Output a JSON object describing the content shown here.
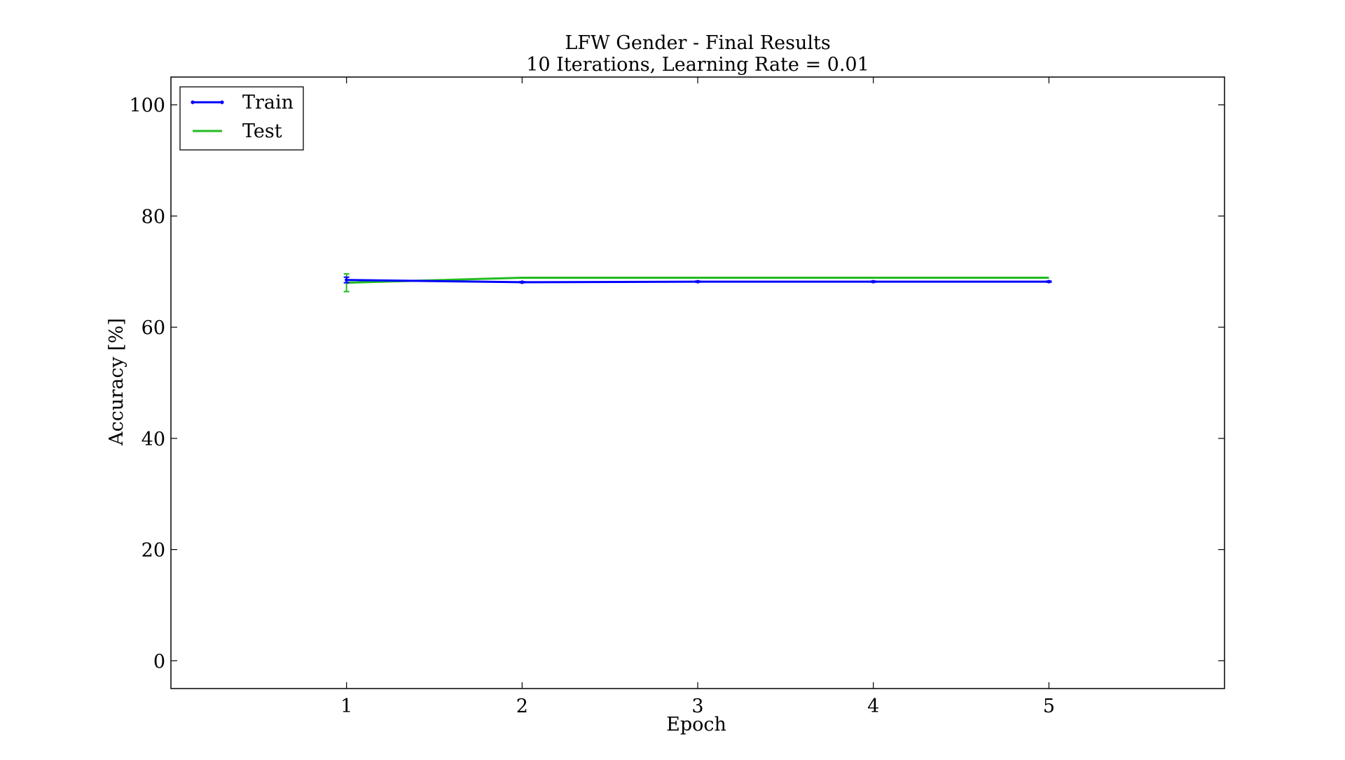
{
  "chart_data": {
    "type": "line",
    "title": "LFW Gender - Final Results",
    "subtitle": "10 Iterations, Learning Rate = 0.01",
    "xlabel": "Epoch",
    "ylabel": "Accuracy [%]",
    "xlim": [
      0,
      6
    ],
    "ylim": [
      -5,
      105
    ],
    "xticks": [
      1,
      2,
      3,
      4,
      5
    ],
    "yticks": [
      0,
      20,
      40,
      60,
      80,
      100
    ],
    "grid": false,
    "legend_position": "top-left",
    "x": [
      1,
      2,
      3,
      4,
      5
    ],
    "series": [
      {
        "name": "Train",
        "values": [
          68.5,
          68.1,
          68.2,
          68.2,
          68.2
        ],
        "error": [
          0.5,
          0.1,
          0.1,
          0.1,
          0.1
        ],
        "color": "#0000ff",
        "marker": "dot"
      },
      {
        "name": "Test",
        "values": [
          68.0,
          68.9,
          68.9,
          68.9,
          68.9
        ],
        "error": [
          1.6,
          0.0,
          0.0,
          0.0,
          0.0
        ],
        "color": "#22bb22",
        "marker": "none"
      }
    ]
  }
}
